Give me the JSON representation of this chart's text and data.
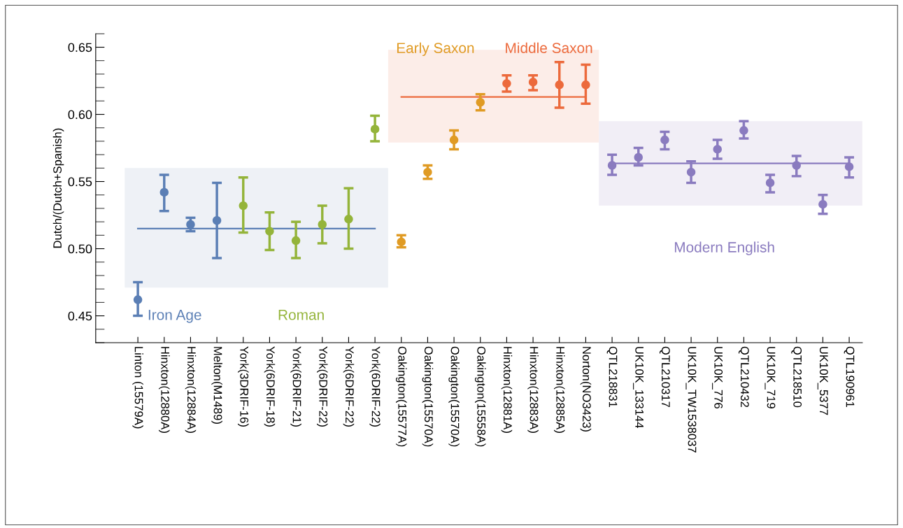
{
  "chart_data": {
    "type": "scatter",
    "ylabel": "Dutch/(Dutch+Spanish)",
    "marker": "circle",
    "grid": false,
    "categories": [
      "Linton (15579A)",
      "Hinxton(12880A)",
      "Hinxton(12884A)",
      "Melton(M1489)",
      "York(3DRIF-16)",
      "York(6DRIF-18)",
      "York(6DRIF-21)",
      "York(6DRIF-22)",
      "York(6DRIF-22)",
      "York(6DRIF-22)",
      "Oakington(15577A)",
      "Oakington(15570A)",
      "Oakington(15570A)",
      "Oakington(15558A)",
      "Hinxton(12881A)",
      "Hinxton(12883A)",
      "Hinxton(12885A)",
      "Norton(NO3423)",
      "QTL218831",
      "UK10K_133144",
      "QTL210317",
      "UK10K_TW1538037",
      "UK10K_776",
      "QTL210432",
      "UK10K_719",
      "QTL218510",
      "UK10K_5377",
      "QTL190961"
    ],
    "ylim": [
      0.43,
      0.66
    ],
    "yticks": [
      {
        "value": 0.45,
        "label": "0.45"
      },
      {
        "value": 0.5,
        "label": "0.50"
      },
      {
        "value": 0.55,
        "label": "0.55"
      },
      {
        "value": 0.6,
        "label": "0.60"
      },
      {
        "value": 0.65,
        "label": "0.65"
      }
    ],
    "series": [
      {
        "color": "#5b7fb5",
        "values": [
          0.462,
          0.542,
          0.518,
          0.521,
          null,
          null,
          null,
          null,
          null,
          null,
          null,
          null,
          null,
          null,
          null,
          null,
          null,
          null,
          null,
          null,
          null,
          null,
          null,
          null,
          null,
          null,
          null,
          null
        ],
        "errors": [
          [
            0.45,
            0.475
          ],
          [
            0.528,
            0.555
          ],
          [
            0.513,
            0.523
          ],
          [
            0.493,
            0.549
          ],
          null,
          null,
          null,
          null,
          null,
          null,
          null,
          null,
          null,
          null,
          null,
          null,
          null,
          null,
          null,
          null,
          null,
          null,
          null,
          null,
          null,
          null,
          null,
          null
        ]
      },
      {
        "color": "#94b43a",
        "values": [
          null,
          null,
          null,
          null,
          0.532,
          0.513,
          0.506,
          0.518,
          0.522,
          0.589,
          null,
          null,
          null,
          null,
          null,
          null,
          null,
          null,
          null,
          null,
          null,
          null,
          null,
          null,
          null,
          null,
          null,
          null
        ],
        "errors": [
          null,
          null,
          null,
          null,
          [
            0.512,
            0.553
          ],
          [
            0.499,
            0.527
          ],
          [
            0.493,
            0.52
          ],
          [
            0.504,
            0.532
          ],
          [
            0.5,
            0.545
          ],
          [
            0.58,
            0.599
          ],
          null,
          null,
          null,
          null,
          null,
          null,
          null,
          null,
          null,
          null,
          null,
          null,
          null,
          null,
          null,
          null,
          null,
          null
        ]
      },
      {
        "color": "#e09b24",
        "values": [
          null,
          null,
          null,
          null,
          null,
          null,
          null,
          null,
          null,
          null,
          0.505,
          0.557,
          0.581,
          0.609,
          null,
          null,
          null,
          null,
          null,
          null,
          null,
          null,
          null,
          null,
          null,
          null,
          null,
          null
        ],
        "errors": [
          null,
          null,
          null,
          null,
          null,
          null,
          null,
          null,
          null,
          null,
          [
            0.501,
            0.51
          ],
          [
            0.552,
            0.562
          ],
          [
            0.574,
            0.588
          ],
          [
            0.603,
            0.615
          ],
          null,
          null,
          null,
          null,
          null,
          null,
          null,
          null,
          null,
          null,
          null,
          null,
          null,
          null
        ]
      },
      {
        "color": "#ec6a3c",
        "values": [
          null,
          null,
          null,
          null,
          null,
          null,
          null,
          null,
          null,
          null,
          null,
          null,
          null,
          null,
          0.623,
          0.624,
          0.622,
          0.622,
          null,
          null,
          null,
          null,
          null,
          null,
          null,
          null,
          null,
          null
        ],
        "errors": [
          null,
          null,
          null,
          null,
          null,
          null,
          null,
          null,
          null,
          null,
          null,
          null,
          null,
          null,
          [
            0.617,
            0.629
          ],
          [
            0.618,
            0.629
          ],
          [
            0.605,
            0.639
          ],
          [
            0.608,
            0.637
          ],
          null,
          null,
          null,
          null,
          null,
          null,
          null,
          null,
          null,
          null
        ]
      },
      {
        "color": "#8a7bbf",
        "values": [
          null,
          null,
          null,
          null,
          null,
          null,
          null,
          null,
          null,
          null,
          null,
          null,
          null,
          null,
          null,
          null,
          null,
          null,
          0.562,
          0.568,
          0.581,
          0.557,
          0.574,
          0.588,
          0.549,
          0.562,
          0.533,
          0.561
        ],
        "errors": [
          null,
          null,
          null,
          null,
          null,
          null,
          null,
          null,
          null,
          null,
          null,
          null,
          null,
          null,
          null,
          null,
          null,
          null,
          [
            0.555,
            0.57
          ],
          [
            0.562,
            0.575
          ],
          [
            0.574,
            0.587
          ],
          [
            0.549,
            0.565
          ],
          [
            0.567,
            0.581
          ],
          [
            0.582,
            0.595
          ],
          [
            0.542,
            0.555
          ],
          [
            0.554,
            0.569
          ],
          [
            0.526,
            0.54
          ],
          [
            0.553,
            0.568
          ]
        ]
      },
      {
        "type": "line",
        "marker": "none",
        "color": "#5b7fb5",
        "values": [
          0.515,
          0.515,
          0.515,
          0.515,
          0.515,
          0.515,
          0.515,
          0.515,
          0.515,
          0.515,
          null,
          null,
          null,
          null,
          null,
          null,
          null,
          null,
          null,
          null,
          null,
          null,
          null,
          null,
          null,
          null,
          null,
          null
        ]
      },
      {
        "type": "line",
        "marker": "none",
        "color": "#ec6a3c",
        "values": [
          null,
          null,
          null,
          null,
          null,
          null,
          null,
          null,
          null,
          null,
          0.613,
          0.613,
          0.613,
          0.613,
          0.613,
          0.613,
          0.613,
          0.613,
          null,
          null,
          null,
          null,
          null,
          null,
          null,
          null,
          null,
          null
        ]
      },
      {
        "type": "line",
        "marker": "none",
        "color": "#8a7bbf",
        "values": [
          null,
          null,
          null,
          null,
          null,
          null,
          null,
          null,
          null,
          null,
          null,
          null,
          null,
          null,
          null,
          null,
          null,
          null,
          0.5635,
          0.5635,
          0.5635,
          0.5635,
          0.5635,
          0.5635,
          0.5635,
          0.5635,
          0.5635,
          0.5635
        ]
      }
    ],
    "bands": [
      {
        "axis": "y",
        "from": 0.471,
        "to": 0.56,
        "color": "#eef1f6"
      },
      {
        "axis": "y",
        "from": 0.579,
        "to": 0.648,
        "color": "#fcede8"
      },
      {
        "axis": "y",
        "from": 0.532,
        "to": 0.595,
        "color": "#f1eef6"
      }
    ],
    "annotations": [
      "Iron Age",
      "Roman",
      "Early Saxon",
      "Middle Saxon",
      "Modern English"
    ]
  }
}
